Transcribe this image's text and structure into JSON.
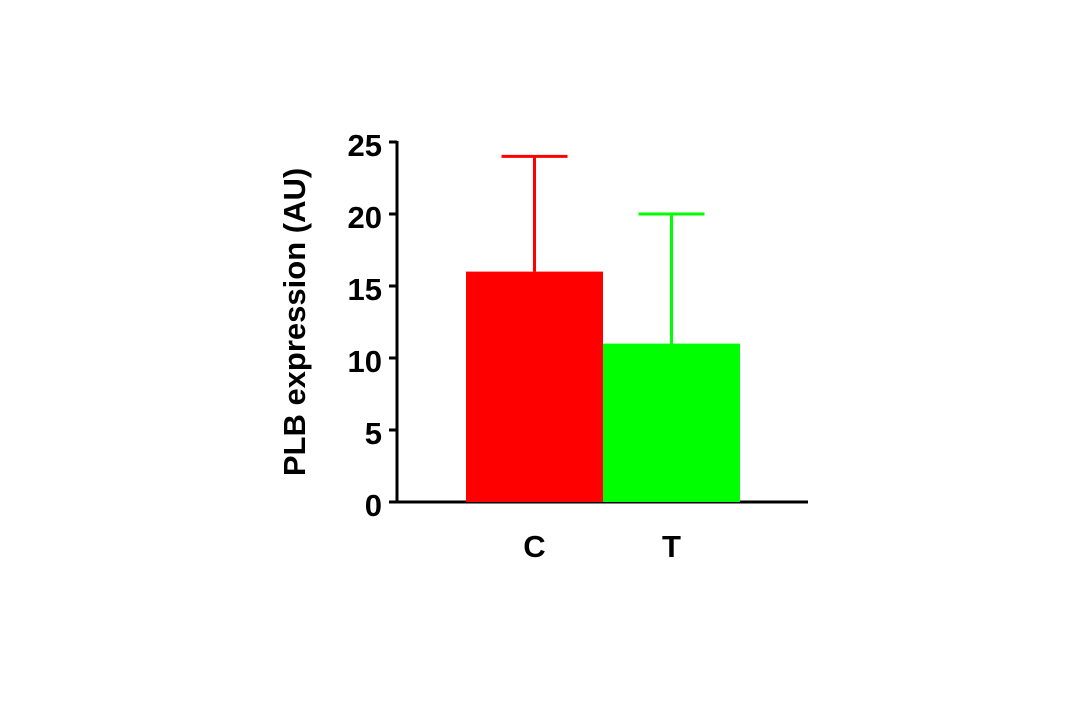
{
  "chart_data": {
    "type": "bar",
    "y_label": "PLB expression (AU)",
    "categories": [
      "C",
      "T"
    ],
    "values": [
      16,
      11
    ],
    "errors": [
      8,
      9
    ],
    "colors": [
      "#ff0000",
      "#00ff00"
    ],
    "ylim": [
      0,
      25
    ],
    "yticks": [
      0,
      5,
      10,
      15,
      20,
      25
    ]
  }
}
